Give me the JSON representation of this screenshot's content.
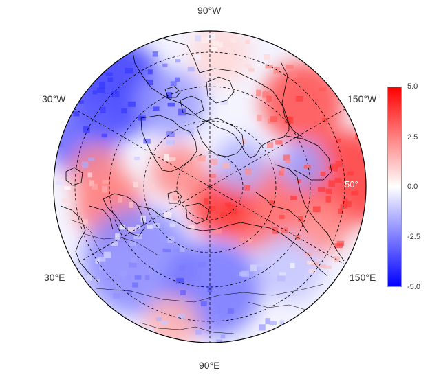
{
  "map": {
    "projection": "north-polar-stereographic",
    "longitude_labels": {
      "top": "90°W",
      "upper_left": "30°W",
      "upper_right": "150°W",
      "lower_left": "30°E",
      "lower_right": "150°E",
      "bottom": "90°E"
    },
    "latitude_label": "50°",
    "colors": {
      "negative": "#0000ff",
      "zero": "#ffffff",
      "positive": "#ff0000",
      "coast": "#000000"
    }
  },
  "colorbar": {
    "min": -5.0,
    "max": 5.0,
    "ticks": [
      "5.0",
      "2.5",
      "0.0",
      "-2.5",
      "-5.0"
    ]
  }
}
